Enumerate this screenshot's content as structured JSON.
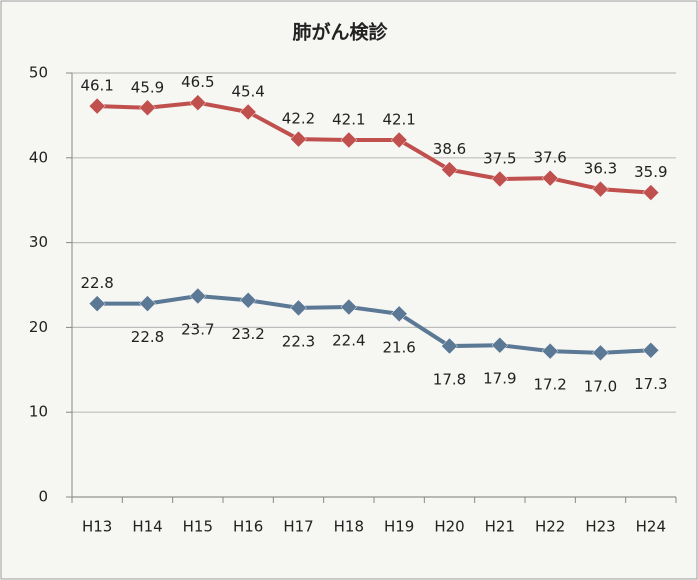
{
  "chart_data": {
    "type": "line",
    "title": "肺がん検診",
    "categories": [
      "H13",
      "H14",
      "H15",
      "H16",
      "H17",
      "H18",
      "H19",
      "H20",
      "H21",
      "H22",
      "H23",
      "H24"
    ],
    "series": [
      {
        "color": "#c0504d",
        "values": [
          46.1,
          45.9,
          46.5,
          45.4,
          42.2,
          42.1,
          42.1,
          38.6,
          37.5,
          37.6,
          36.3,
          35.9
        ]
      },
      {
        "color": "#5b7895",
        "values": [
          22.8,
          22.8,
          23.7,
          23.2,
          22.3,
          22.4,
          21.6,
          17.8,
          17.9,
          17.2,
          17.0,
          17.3
        ],
        "value_labels": [
          "22.8",
          "22.8",
          "23.7",
          "23.2",
          "22.3",
          "22.4",
          "21.6",
          "17.8",
          "17.9",
          "17.2",
          "17.0",
          "17.3"
        ]
      }
    ],
    "ylim": [
      0,
      50
    ],
    "yticks": [
      0,
      10,
      20,
      30,
      40,
      50
    ],
    "grid": true
  }
}
